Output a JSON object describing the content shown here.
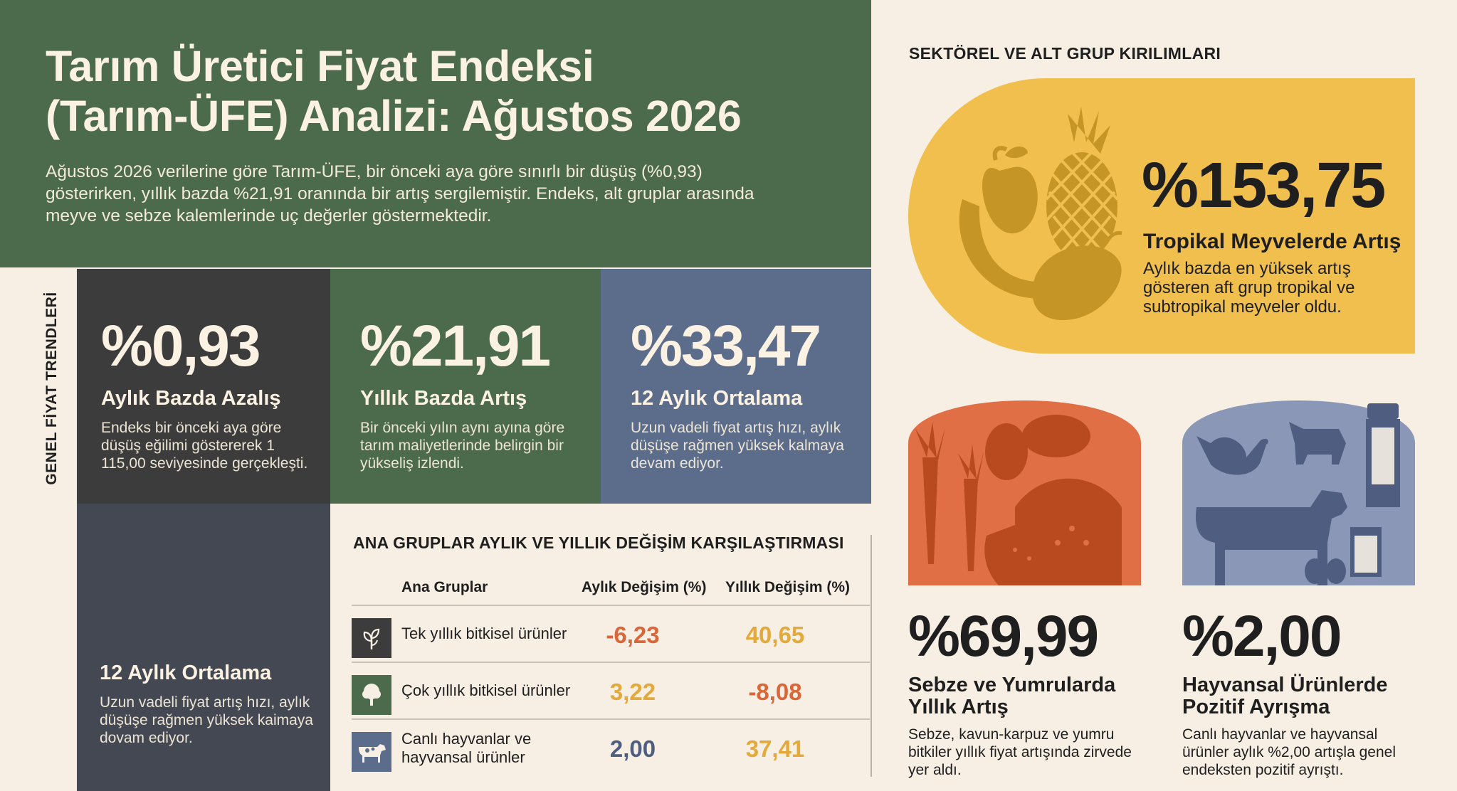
{
  "header": {
    "title_line1": "Tarım Üretici Fiyat Endeksi",
    "title_line2": "(Tarım-ÜFE) Analizi: Ağustos 2026",
    "intro": "Ağustos 2026 verilerine göre Tarım-ÜFE, bir önceki aya göre sınırlı bir düşüş (%0,93) gösterirken, yıllık bazda %21,91 oranında bir artış sergilemiştir. Endeks, alt gruplar arasında meyve ve sebze kalemlerinde uç değerler göstermektedir."
  },
  "side_label": "GENEL FİYAT TRENDLERİ",
  "cards": [
    {
      "value": "%0,93",
      "heading": "Aylık Bazda Azalış",
      "text": "Endeks bir önceki aya göre düşüş eğilimi göstererek 1 115,00 seviyesinde gerçekleşti."
    },
    {
      "value": "%21,91",
      "heading": "Yıllık Bazda Artış",
      "text": "Bir önceki yılın aynı ayına göre tarım maliyetlerinde belirgin bir yükseliş izlendi."
    },
    {
      "value": "%33,47",
      "heading": "12 Aylık Ortalama",
      "text": "Uzun vadeli fiyat artış hızı, aylık düşüşe rağmen yüksek kalmaya devam ediyor."
    },
    {
      "heading": "12 Aylık Ortalama",
      "text": "Uzun vadeli fiyat artış hızı, aylık düşüşe rağmen yüksek kaimaya dovam ediyor."
    }
  ],
  "table": {
    "title": "ANA GRUPLAR AYLIK VE YILLIK DEĞİŞİM KARŞILAŞTIRMASI",
    "columns": [
      "Ana Gruplar",
      "Aylık Değişim (%)",
      "Yıllık Değişim (%)"
    ],
    "rows": [
      {
        "icon": "plant-icon",
        "label": "Tek yıllık bitkisel ürünler",
        "monthly": "-6,23",
        "yearly": "40,65"
      },
      {
        "icon": "tree-icon",
        "label": "Çok yıllık bitkisel ürünler",
        "monthly": "3,22",
        "yearly": "-8,08"
      },
      {
        "icon": "cow-icon",
        "label_line1": "Canlı hayvanlar ve",
        "label_line2": "hayvansal ürünler",
        "monthly": "2,00",
        "yearly": "37,41"
      }
    ],
    "colors": {
      "red": "#d9673a",
      "yellow": "#e3a93a",
      "blue": "#4f5e80"
    }
  },
  "right": {
    "title": "SEKTÖREL VE ALT GRUP KIRILIMLARI",
    "tropical": {
      "value": "%153,75",
      "heading": "Tropikal Meyvelerde Artış",
      "text": "Aylık bazda en yüksek artış gösteren aft grup tropikal ve subtropikal meyveler oldu."
    },
    "vegetables": {
      "value": "%69,99",
      "heading": "Sebze ve Yumrularda Yıllık Artış",
      "text": "Sebze, kavun-karpuz ve yumru bitkiler yıllık fiyat artışında zirvede yer aldı."
    },
    "animal": {
      "value": "%2,00",
      "heading": "Hayvansal Ürünlerde Pozitif Ayrışma",
      "text": "Canlı hayvanlar ve hayvansal ürünler aylık %2,00 artışla genel endeksten pozitif ayrıştı."
    }
  }
}
